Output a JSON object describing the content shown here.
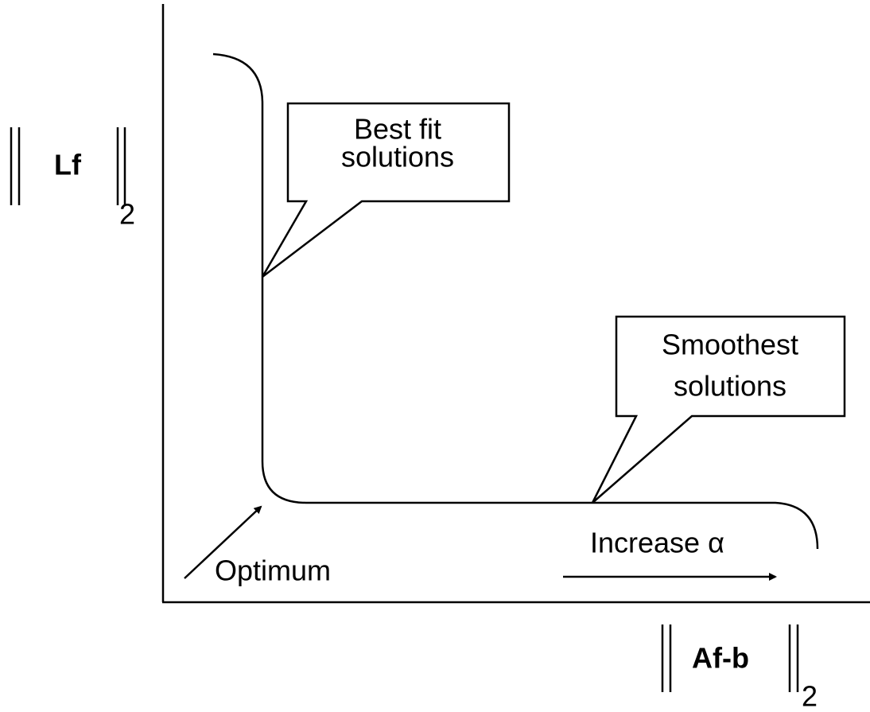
{
  "y_axis_label": {
    "text": "Lf",
    "subscript": "2"
  },
  "x_axis_label": {
    "text": "Af-b",
    "subscript": "2"
  },
  "callouts": [
    {
      "lines": [
        "Best fit",
        "solutions"
      ]
    },
    {
      "lines": [
        "Smoothest",
        "solutions"
      ]
    }
  ],
  "annotations": {
    "optimum": "Optimum",
    "increase": "Increase α"
  }
}
